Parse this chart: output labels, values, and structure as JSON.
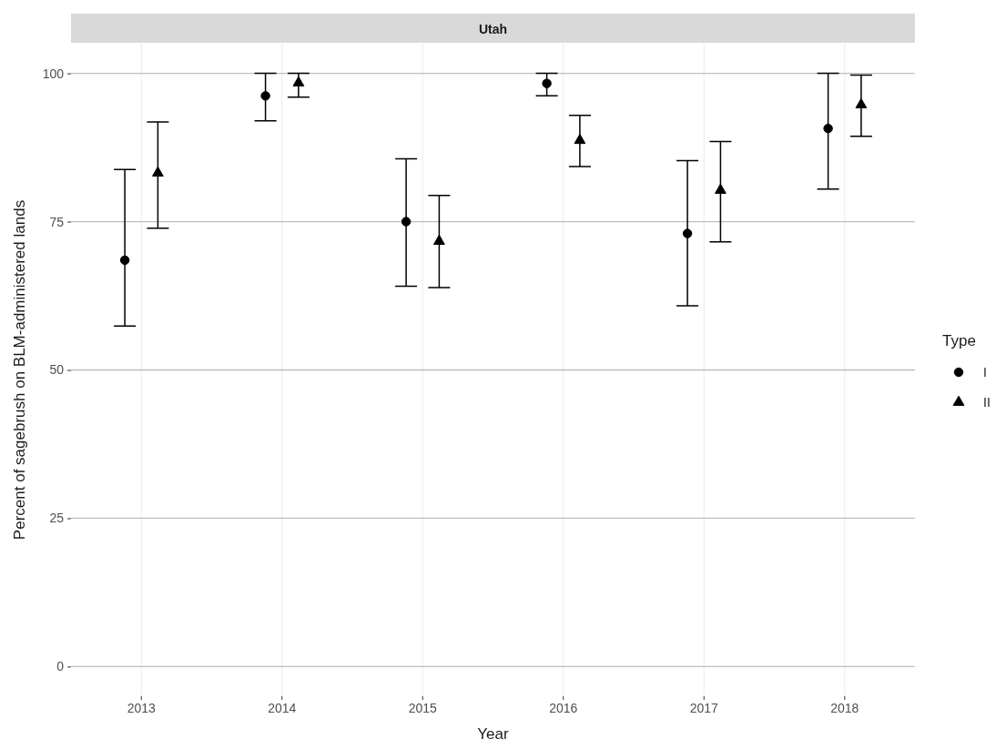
{
  "chart_data": {
    "type": "scatter",
    "title": "Utah",
    "xlabel": "Year",
    "ylabel": "Percent of sagebrush on BLM-administered lands",
    "legend_title": "Type",
    "categories": [
      "2013",
      "2014",
      "2015",
      "2016",
      "2017",
      "2018"
    ],
    "series": [
      {
        "name": "I",
        "color": "#000000",
        "marker": "circle",
        "values": [
          68.5,
          96.2,
          75.0,
          98.3,
          73.0,
          90.7
        ],
        "errors": [
          [
            57.4,
            83.8
          ],
          [
            92.0,
            100
          ],
          [
            64.1,
            85.6
          ],
          [
            96.2,
            100
          ],
          [
            60.8,
            85.3
          ],
          [
            80.5,
            100
          ]
        ]
      },
      {
        "name": "II",
        "color": "#000000",
        "marker": "triangle",
        "values": [
          83.2,
          98.4,
          71.7,
          88.7,
          80.3,
          94.7
        ],
        "errors": [
          [
            73.9,
            91.8
          ],
          [
            96.0,
            100
          ],
          [
            63.9,
            79.4
          ],
          [
            84.3,
            92.9
          ],
          [
            71.6,
            88.5
          ],
          [
            89.4,
            99.7
          ]
        ]
      }
    ],
    "ylim": [
      -5,
      105
    ],
    "yticks": [
      0,
      25,
      50,
      75,
      100
    ],
    "grid": true,
    "legend": "right"
  }
}
